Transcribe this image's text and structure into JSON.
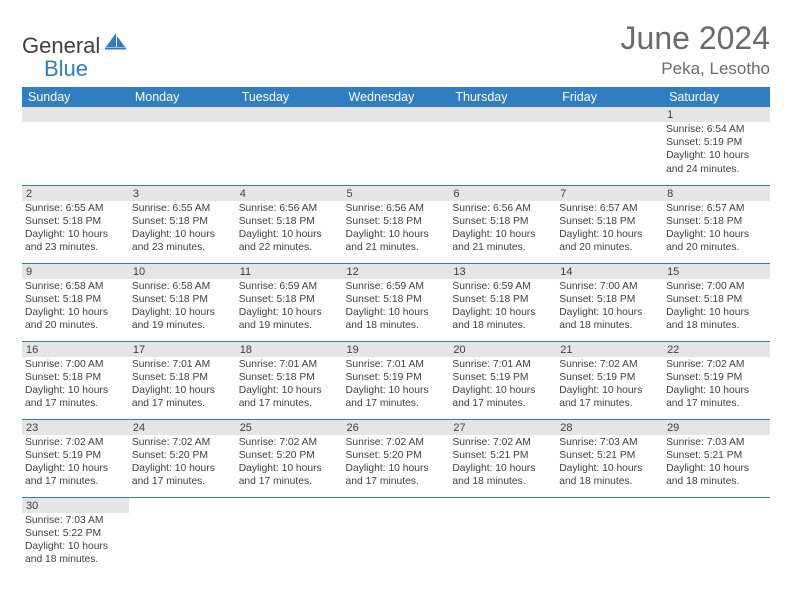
{
  "logo": {
    "part1": "General",
    "part2": "Blue"
  },
  "title": "June 2024",
  "location": "Peka, Lesotho",
  "colors": {
    "header_bg": "#2f7ec2",
    "header_text": "#ffffff",
    "daynum_bg": "#e5e5e5",
    "border": "#2f7ec2",
    "body_text": "#3f3f3f",
    "title_text": "#6b6b6b",
    "logo_blue": "#2f7ec2"
  },
  "fonts": {
    "title_size": 32,
    "location_size": 17,
    "th_size": 12.5,
    "cell_size": 10.3
  },
  "weekdays": [
    "Sunday",
    "Monday",
    "Tuesday",
    "Wednesday",
    "Thursday",
    "Friday",
    "Saturday"
  ],
  "weeks": [
    [
      {
        "blank": true
      },
      {
        "blank": true
      },
      {
        "blank": true
      },
      {
        "blank": true
      },
      {
        "blank": true
      },
      {
        "blank": true
      },
      {
        "day": "1",
        "sunrise": "Sunrise: 6:54 AM",
        "sunset": "Sunset: 5:19 PM",
        "daylight1": "Daylight: 10 hours",
        "daylight2": "and 24 minutes."
      }
    ],
    [
      {
        "day": "2",
        "sunrise": "Sunrise: 6:55 AM",
        "sunset": "Sunset: 5:18 PM",
        "daylight1": "Daylight: 10 hours",
        "daylight2": "and 23 minutes."
      },
      {
        "day": "3",
        "sunrise": "Sunrise: 6:55 AM",
        "sunset": "Sunset: 5:18 PM",
        "daylight1": "Daylight: 10 hours",
        "daylight2": "and 23 minutes."
      },
      {
        "day": "4",
        "sunrise": "Sunrise: 6:56 AM",
        "sunset": "Sunset: 5:18 PM",
        "daylight1": "Daylight: 10 hours",
        "daylight2": "and 22 minutes."
      },
      {
        "day": "5",
        "sunrise": "Sunrise: 6:56 AM",
        "sunset": "Sunset: 5:18 PM",
        "daylight1": "Daylight: 10 hours",
        "daylight2": "and 21 minutes."
      },
      {
        "day": "6",
        "sunrise": "Sunrise: 6:56 AM",
        "sunset": "Sunset: 5:18 PM",
        "daylight1": "Daylight: 10 hours",
        "daylight2": "and 21 minutes."
      },
      {
        "day": "7",
        "sunrise": "Sunrise: 6:57 AM",
        "sunset": "Sunset: 5:18 PM",
        "daylight1": "Daylight: 10 hours",
        "daylight2": "and 20 minutes."
      },
      {
        "day": "8",
        "sunrise": "Sunrise: 6:57 AM",
        "sunset": "Sunset: 5:18 PM",
        "daylight1": "Daylight: 10 hours",
        "daylight2": "and 20 minutes."
      }
    ],
    [
      {
        "day": "9",
        "sunrise": "Sunrise: 6:58 AM",
        "sunset": "Sunset: 5:18 PM",
        "daylight1": "Daylight: 10 hours",
        "daylight2": "and 20 minutes."
      },
      {
        "day": "10",
        "sunrise": "Sunrise: 6:58 AM",
        "sunset": "Sunset: 5:18 PM",
        "daylight1": "Daylight: 10 hours",
        "daylight2": "and 19 minutes."
      },
      {
        "day": "11",
        "sunrise": "Sunrise: 6:59 AM",
        "sunset": "Sunset: 5:18 PM",
        "daylight1": "Daylight: 10 hours",
        "daylight2": "and 19 minutes."
      },
      {
        "day": "12",
        "sunrise": "Sunrise: 6:59 AM",
        "sunset": "Sunset: 5:18 PM",
        "daylight1": "Daylight: 10 hours",
        "daylight2": "and 18 minutes."
      },
      {
        "day": "13",
        "sunrise": "Sunrise: 6:59 AM",
        "sunset": "Sunset: 5:18 PM",
        "daylight1": "Daylight: 10 hours",
        "daylight2": "and 18 minutes."
      },
      {
        "day": "14",
        "sunrise": "Sunrise: 7:00 AM",
        "sunset": "Sunset: 5:18 PM",
        "daylight1": "Daylight: 10 hours",
        "daylight2": "and 18 minutes."
      },
      {
        "day": "15",
        "sunrise": "Sunrise: 7:00 AM",
        "sunset": "Sunset: 5:18 PM",
        "daylight1": "Daylight: 10 hours",
        "daylight2": "and 18 minutes."
      }
    ],
    [
      {
        "day": "16",
        "sunrise": "Sunrise: 7:00 AM",
        "sunset": "Sunset: 5:18 PM",
        "daylight1": "Daylight: 10 hours",
        "daylight2": "and 17 minutes."
      },
      {
        "day": "17",
        "sunrise": "Sunrise: 7:01 AM",
        "sunset": "Sunset: 5:18 PM",
        "daylight1": "Daylight: 10 hours",
        "daylight2": "and 17 minutes."
      },
      {
        "day": "18",
        "sunrise": "Sunrise: 7:01 AM",
        "sunset": "Sunset: 5:18 PM",
        "daylight1": "Daylight: 10 hours",
        "daylight2": "and 17 minutes."
      },
      {
        "day": "19",
        "sunrise": "Sunrise: 7:01 AM",
        "sunset": "Sunset: 5:19 PM",
        "daylight1": "Daylight: 10 hours",
        "daylight2": "and 17 minutes."
      },
      {
        "day": "20",
        "sunrise": "Sunrise: 7:01 AM",
        "sunset": "Sunset: 5:19 PM",
        "daylight1": "Daylight: 10 hours",
        "daylight2": "and 17 minutes."
      },
      {
        "day": "21",
        "sunrise": "Sunrise: 7:02 AM",
        "sunset": "Sunset: 5:19 PM",
        "daylight1": "Daylight: 10 hours",
        "daylight2": "and 17 minutes."
      },
      {
        "day": "22",
        "sunrise": "Sunrise: 7:02 AM",
        "sunset": "Sunset: 5:19 PM",
        "daylight1": "Daylight: 10 hours",
        "daylight2": "and 17 minutes."
      }
    ],
    [
      {
        "day": "23",
        "sunrise": "Sunrise: 7:02 AM",
        "sunset": "Sunset: 5:19 PM",
        "daylight1": "Daylight: 10 hours",
        "daylight2": "and 17 minutes."
      },
      {
        "day": "24",
        "sunrise": "Sunrise: 7:02 AM",
        "sunset": "Sunset: 5:20 PM",
        "daylight1": "Daylight: 10 hours",
        "daylight2": "and 17 minutes."
      },
      {
        "day": "25",
        "sunrise": "Sunrise: 7:02 AM",
        "sunset": "Sunset: 5:20 PM",
        "daylight1": "Daylight: 10 hours",
        "daylight2": "and 17 minutes."
      },
      {
        "day": "26",
        "sunrise": "Sunrise: 7:02 AM",
        "sunset": "Sunset: 5:20 PM",
        "daylight1": "Daylight: 10 hours",
        "daylight2": "and 17 minutes."
      },
      {
        "day": "27",
        "sunrise": "Sunrise: 7:02 AM",
        "sunset": "Sunset: 5:21 PM",
        "daylight1": "Daylight: 10 hours",
        "daylight2": "and 18 minutes."
      },
      {
        "day": "28",
        "sunrise": "Sunrise: 7:03 AM",
        "sunset": "Sunset: 5:21 PM",
        "daylight1": "Daylight: 10 hours",
        "daylight2": "and 18 minutes."
      },
      {
        "day": "29",
        "sunrise": "Sunrise: 7:03 AM",
        "sunset": "Sunset: 5:21 PM",
        "daylight1": "Daylight: 10 hours",
        "daylight2": "and 18 minutes."
      }
    ],
    [
      {
        "day": "30",
        "sunrise": "Sunrise: 7:03 AM",
        "sunset": "Sunset: 5:22 PM",
        "daylight1": "Daylight: 10 hours",
        "daylight2": "and 18 minutes."
      },
      {
        "blank": true
      },
      {
        "blank": true
      },
      {
        "blank": true
      },
      {
        "blank": true
      },
      {
        "blank": true
      },
      {
        "blank": true
      }
    ]
  ]
}
